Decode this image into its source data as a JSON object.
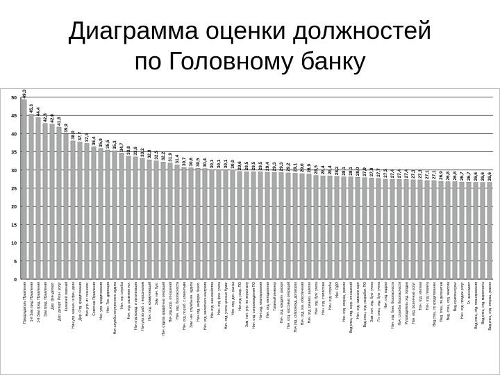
{
  "slide": {
    "title_line1": "Диаграмма оценки должностей",
    "title_line2": "по Головному банку"
  },
  "chart_data": {
    "type": "bar",
    "title": "",
    "xlabel": "",
    "ylabel": "",
    "ylim": [
      0,
      50
    ],
    "yticks": [
      0,
      5,
      10,
      15,
      20,
      25,
      30,
      35,
      40,
      45,
      50
    ],
    "grid": true,
    "bar_color": "#a9abab",
    "values": [
      49.3,
      45.3,
      44.4,
      42.8,
      42.6,
      41.8,
      39.9,
      38.0,
      37.7,
      37.3,
      36.4,
      35.9,
      35.5,
      35.3,
      34.7,
      33.8,
      33.6,
      33.2,
      32.8,
      32.5,
      32.2,
      31.9,
      31.4,
      30.7,
      30.6,
      30.5,
      30.4,
      30.1,
      30.1,
      30.1,
      30.0,
      29.6,
      29.5,
      29.5,
      29.5,
      29.4,
      29.3,
      29.3,
      29.2,
      29.1,
      29.0,
      28.9,
      28.5,
      28.4,
      28.4,
      28.2,
      28.1,
      28.1,
      28.0,
      27.9,
      27.8,
      27.7,
      27.5,
      27.4,
      27.4,
      27.4,
      27.3,
      27.3,
      27.1,
      27.1,
      26.9,
      26.8,
      26.8,
      26.7,
      26.7,
      26.6,
      26.6,
      26.6
    ],
    "categories": [
      "Председатель Правления",
      "1-й Зам пред Правления",
      "1-й Зам пред. Правления",
      "Зам пред. Правления",
      "Дир. фин.департ.",
      "Дир. департ. Розн. услуг",
      "Казначей главный",
      "Нач.упр. казнач. и фин. дела",
      "Дир. Отд. кредитования",
      "Нач.упр. ит. технолог.",
      "Советник Правления",
      "Нач. упр. кредитования",
      "Нач. Тех. дирекции",
      "Нач.службы внутреннего аудита",
      "Нач. юр. службы",
      "Нач. отд. развития тех.",
      "Нач.отд.коорд. и организации",
      "Нач.упр.по раб. с персоналом",
      "Нач. отд. коммуникаций",
      "Зам. нач. бухг.",
      "Нач. отдела кредитных операций",
      "Нач.отд.корр. отношений",
      "Нач. отд. безопасности",
      "Нач. отд. по раб. с клиентами",
      "Зам. нач. службы вн. аудита",
      "Нач.отд. информ. безоп.",
      "Нач. отд. валютного контроля",
      "Нач.отд. казначейства",
      "Нач. отд. фин. учета",
      "Нач. отд. учета ценных бумаг",
      "Нач. отд. ден. рынка",
      "Нач.отд. разр. ПО",
      "Зам. нач. упр. по персоналу",
      "Нач. отд. сопровождения ПО",
      "Нач.отд. планирования",
      "Нач. отд. методологии",
      "Главный инженер",
      "Нач. отд. кредитн. рисков",
      "Нач. отд. кассовых операций",
      "Нач.отд. сопровожд. договоров",
      "Нач. отд. хоз. обеспечения",
      "Нач. отд. реализ. залогов",
      "Нач. отд. бухг. учета",
      "Нач. отд. статистики",
      "Нач. отд. службы",
      "Нач. ОДО",
      "Нач. отд. операц. рисков",
      "Вед.спец. отд. корр. отношений",
      "Нач. отд. эмиссии карт",
      "Вед.спец. отд. разработ. ПО",
      "Зам. нач. отд. бухг. учета",
      "Гл. спец. отд. бухг. учета",
      "Нач. отд. кадров",
      "Нач. отд. банк. безопасности",
      "Нач. службы безопасности",
      "Руководитель отд. продаж",
      "Нач. отд. розничных услуг",
      "Нач. отд. ипотеки",
      "Нач. отд. лизинга",
      "Вед.спец. по кредитованию",
      "Вед. спец. по депозитам",
      "Вед. спец. отд. эмиссии",
      "Вед.юрисконсульт",
      "Нач. отд. продаж услуг",
      "Гл. экономист",
      "Вед.спец. отд. планирования",
      "Вед.спец. отд. маркетинга",
      "Вед.спец. отд. операц. рисков"
    ]
  }
}
